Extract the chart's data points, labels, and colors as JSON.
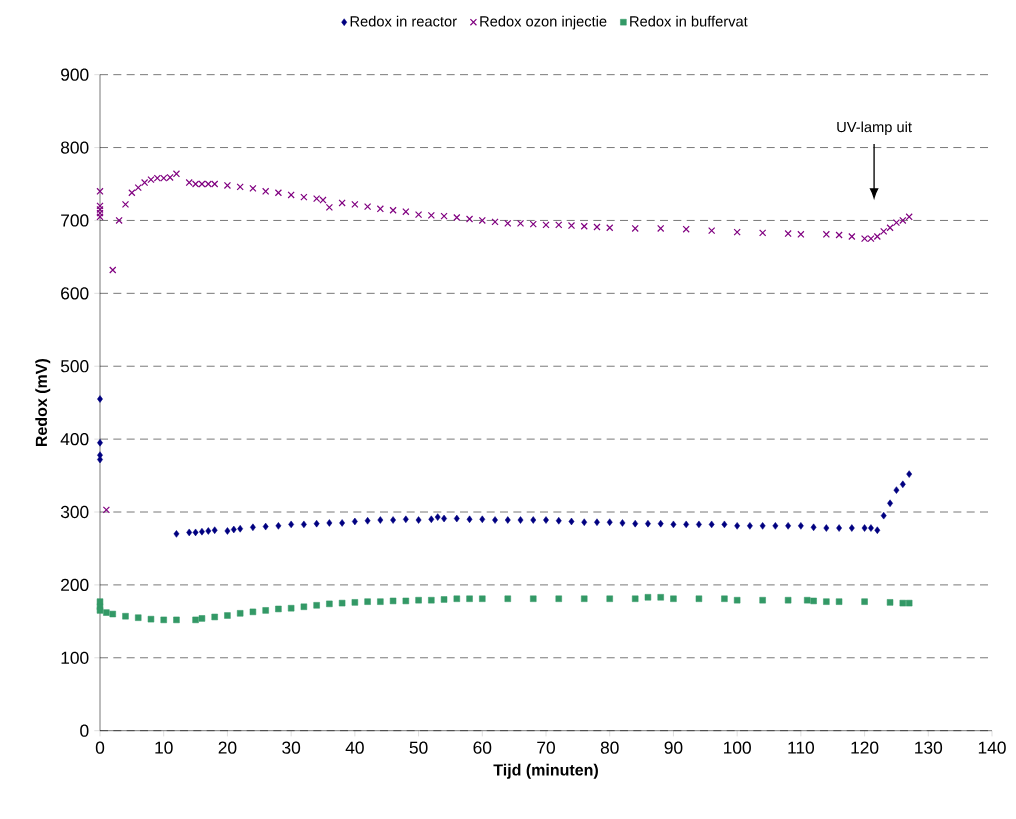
{
  "chart_data": {
    "type": "scatter",
    "xlabel": "Tijd (minuten)",
    "ylabel": "Redox (mV)",
    "xlim": [
      0,
      140
    ],
    "xticks": [
      0,
      10,
      20,
      30,
      40,
      50,
      60,
      70,
      80,
      90,
      100,
      110,
      120,
      130,
      140
    ],
    "ylim": [
      0,
      900
    ],
    "yticks": [
      0,
      100,
      200,
      300,
      400,
      500,
      600,
      700,
      800,
      900
    ],
    "grid": "y",
    "legend": "top",
    "line_style": "dashed",
    "annotations": [
      "UV-lamp uit"
    ],
    "series": [
      {
        "name": "Redox in reactor",
        "color": "#000080",
        "marker": "diamond",
        "x": [
          0,
          0,
          0,
          0,
          12,
          14,
          15,
          16,
          17,
          18,
          20,
          21,
          22,
          24,
          26,
          28,
          30,
          32,
          34,
          36,
          38,
          40,
          42,
          44,
          46,
          48,
          50,
          52,
          53,
          54,
          56,
          58,
          60,
          62,
          64,
          66,
          68,
          70,
          72,
          74,
          76,
          78,
          80,
          82,
          84,
          86,
          88,
          90,
          92,
          94,
          96,
          98,
          100,
          102,
          104,
          106,
          108,
          110,
          112,
          114,
          116,
          118,
          120,
          121,
          122,
          123,
          124,
          125,
          126,
          127
        ],
        "values": [
          455,
          395,
          378,
          372,
          270,
          272,
          272,
          273,
          274,
          275,
          274,
          276,
          277,
          279,
          280,
          281,
          283,
          283,
          284,
          285,
          285,
          287,
          288,
          289,
          289,
          290,
          289,
          290,
          293,
          291,
          291,
          290,
          290,
          289,
          289,
          289,
          289,
          289,
          288,
          287,
          286,
          286,
          286,
          285,
          284,
          284,
          284,
          283,
          283,
          283,
          283,
          283,
          281,
          281,
          281,
          281,
          281,
          281,
          279,
          278,
          278,
          278,
          278,
          278,
          275,
          295,
          312,
          330,
          338,
          352
        ]
      },
      {
        "name": "Redox ozon injectie",
        "color": "#800080",
        "marker": "cross",
        "x": [
          0,
          0,
          0,
          0,
          0,
          1,
          2,
          3,
          4,
          5,
          6,
          7,
          8,
          9,
          10,
          11,
          12,
          14,
          15,
          16,
          17,
          18,
          20,
          22,
          24,
          26,
          28,
          30,
          32,
          34,
          35,
          36,
          38,
          40,
          42,
          44,
          46,
          48,
          50,
          52,
          54,
          56,
          58,
          60,
          62,
          64,
          66,
          68,
          70,
          72,
          74,
          76,
          78,
          80,
          84,
          88,
          92,
          96,
          100,
          104,
          108,
          110,
          114,
          116,
          118,
          120,
          121,
          122,
          123,
          124,
          125,
          126,
          127
        ],
        "values": [
          740,
          720,
          715,
          710,
          705,
          303,
          632,
          700,
          722,
          738,
          745,
          752,
          756,
          758,
          758,
          759,
          764,
          752,
          750,
          750,
          750,
          750,
          748,
          746,
          744,
          740,
          738,
          735,
          732,
          730,
          728,
          718,
          724,
          722,
          719,
          716,
          714,
          712,
          708,
          707,
          706,
          704,
          702,
          700,
          698,
          696,
          696,
          695,
          694,
          694,
          693,
          692,
          691,
          690,
          689,
          689,
          688,
          686,
          684,
          683,
          682,
          681,
          681,
          680,
          678,
          675,
          675,
          678,
          685,
          690,
          697,
          700,
          705
        ]
      },
      {
        "name": "Redox in buffervat",
        "color": "#339966",
        "marker": "square",
        "x": [
          0,
          0,
          0,
          1,
          2,
          4,
          6,
          8,
          10,
          12,
          15,
          16,
          18,
          20,
          22,
          24,
          26,
          28,
          30,
          32,
          34,
          36,
          38,
          40,
          42,
          44,
          46,
          48,
          50,
          52,
          54,
          56,
          58,
          60,
          64,
          68,
          72,
          76,
          80,
          84,
          86,
          88,
          90,
          94,
          98,
          100,
          104,
          108,
          111,
          112,
          114,
          116,
          120,
          124,
          126,
          127
        ],
        "values": [
          177,
          170,
          165,
          162,
          160,
          157,
          155,
          153,
          152,
          152,
          152,
          154,
          156,
          158,
          161,
          163,
          165,
          167,
          168,
          170,
          172,
          174,
          175,
          176,
          177,
          177,
          178,
          178,
          179,
          179,
          180,
          181,
          181,
          181,
          181,
          181,
          181,
          181,
          181,
          181,
          183,
          183,
          181,
          181,
          181,
          179,
          179,
          179,
          179,
          178,
          177,
          177,
          177,
          176,
          175,
          175
        ]
      }
    ]
  }
}
